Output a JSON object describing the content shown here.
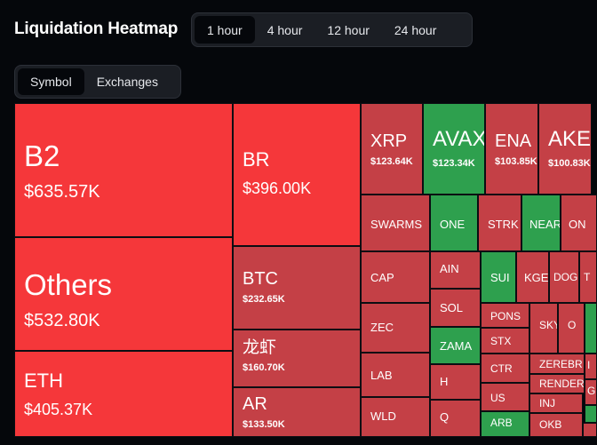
{
  "page": {
    "title": "Liquidation Heatmap"
  },
  "time_filter": {
    "options": [
      "1 hour",
      "4 hour",
      "12 hour",
      "24 hour"
    ],
    "selected": "1 hour"
  },
  "view_filter": {
    "options": [
      "Symbol",
      "Exchanges"
    ],
    "selected": "Symbol"
  },
  "colors": {
    "loss": "#f5373a",
    "loss_dim": "#c44046",
    "gain": "#2ea04e",
    "background": "#05070b"
  },
  "heatmap": [
    {
      "symbol": "B2",
      "value": "$635.57K",
      "color": "loss"
    },
    {
      "symbol": "Others",
      "value": "$532.80K",
      "color": "loss"
    },
    {
      "symbol": "ETH",
      "value": "$405.37K",
      "color": "loss"
    },
    {
      "symbol": "BR",
      "value": "$396.00K",
      "color": "loss"
    },
    {
      "symbol": "BTC",
      "value": "$232.65K",
      "color": "loss_dim"
    },
    {
      "symbol": "龙虾",
      "value": "$160.70K",
      "color": "loss_dim"
    },
    {
      "symbol": "AR",
      "value": "$133.50K",
      "color": "loss_dim"
    },
    {
      "symbol": "XRP",
      "value": "$123.64K",
      "color": "loss_dim"
    },
    {
      "symbol": "AVAX",
      "value": "$123.34K",
      "color": "gain"
    },
    {
      "symbol": "ENA",
      "value": "$103.85K",
      "color": "loss_dim"
    },
    {
      "symbol": "AKE",
      "value": "$100.83K",
      "color": "loss_dim"
    },
    {
      "symbol": "SWARMS",
      "value": "",
      "color": "loss_dim"
    },
    {
      "symbol": "ONE",
      "value": "",
      "color": "gain"
    },
    {
      "symbol": "STRK",
      "value": "",
      "color": "loss_dim"
    },
    {
      "symbol": "NEAR",
      "value": "",
      "color": "gain"
    },
    {
      "symbol": "ON",
      "value": "",
      "color": "loss_dim"
    },
    {
      "symbol": "CAP",
      "value": "",
      "color": "loss_dim"
    },
    {
      "symbol": "AIN",
      "value": "",
      "color": "loss_dim"
    },
    {
      "symbol": "SUI",
      "value": "",
      "color": "gain"
    },
    {
      "symbol": "KGEN",
      "value": "",
      "color": "loss_dim"
    },
    {
      "symbol": "DOG",
      "value": "",
      "color": "loss_dim"
    },
    {
      "symbol": "T",
      "value": "",
      "color": "loss_dim"
    },
    {
      "symbol": "SOL",
      "value": "",
      "color": "loss_dim"
    },
    {
      "symbol": "ZEC",
      "value": "",
      "color": "loss_dim"
    },
    {
      "symbol": "PONS",
      "value": "",
      "color": "loss_dim"
    },
    {
      "symbol": "SKY",
      "value": "",
      "color": "loss_dim"
    },
    {
      "symbol": "O",
      "value": "",
      "color": "loss_dim"
    },
    {
      "symbol": "",
      "value": "",
      "color": "gain"
    },
    {
      "symbol": "ZAMA",
      "value": "",
      "color": "gain"
    },
    {
      "symbol": "STX",
      "value": "",
      "color": "loss_dim"
    },
    {
      "symbol": "ZEREBR",
      "value": "",
      "color": "loss_dim"
    },
    {
      "symbol": "I",
      "value": "",
      "color": "loss_dim"
    },
    {
      "symbol": "LAB",
      "value": "",
      "color": "loss_dim"
    },
    {
      "symbol": "H",
      "value": "",
      "color": "loss_dim"
    },
    {
      "symbol": "CTR",
      "value": "",
      "color": "loss_dim"
    },
    {
      "symbol": "RENDER",
      "value": "",
      "color": "loss_dim"
    },
    {
      "symbol": "G",
      "value": "",
      "color": "loss_dim"
    },
    {
      "symbol": "US",
      "value": "",
      "color": "loss_dim"
    },
    {
      "symbol": "INJ",
      "value": "",
      "color": "loss_dim"
    },
    {
      "symbol": "",
      "value": "",
      "color": "gain"
    },
    {
      "symbol": "WLD",
      "value": "",
      "color": "loss_dim"
    },
    {
      "symbol": "Q",
      "value": "",
      "color": "loss_dim"
    },
    {
      "symbol": "ARB",
      "value": "",
      "color": "gain"
    },
    {
      "symbol": "OKB",
      "value": "",
      "color": "loss_dim"
    },
    {
      "symbol": "",
      "value": "",
      "color": "loss_dim"
    }
  ]
}
